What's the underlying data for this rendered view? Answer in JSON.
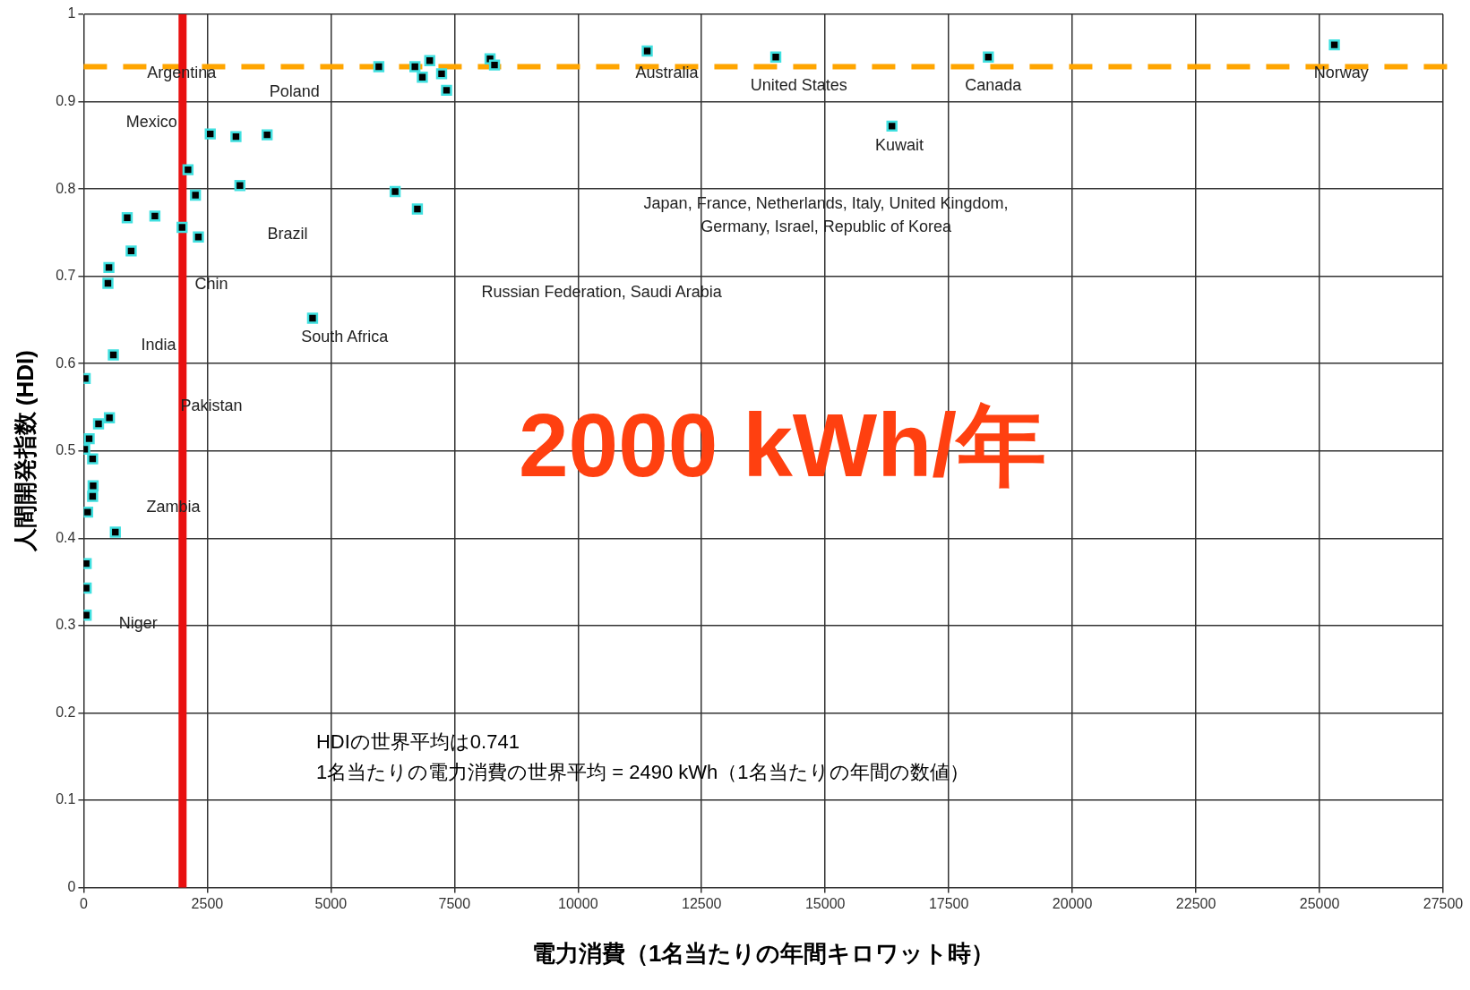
{
  "chart_data": {
    "type": "scatter",
    "xlabel": "電力消費（1名当たりの年間キロワット時）",
    "ylabel": "人間開発指数 (HDI)",
    "xlim": [
      0,
      27500
    ],
    "xticks": [
      0,
      2500,
      5000,
      7500,
      10000,
      12500,
      15000,
      17500,
      20000,
      22500,
      25000,
      27500
    ],
    "ylim": [
      0,
      1
    ],
    "yticks": [
      0,
      0.1,
      0.2,
      0.3,
      0.4,
      0.5,
      0.6,
      0.7,
      0.8,
      0.9,
      1
    ],
    "grid": true,
    "legend": false,
    "marker": "square",
    "series": [
      {
        "color": "#40e0e0",
        "x": [
          25300,
          18300,
          14000,
          11400,
          16350,
          5970,
          6700,
          7000,
          6850,
          7240,
          7340,
          8220,
          8310,
          6300,
          6750,
          4630,
          2560,
          3080,
          3710,
          3160,
          2110,
          2260,
          1990,
          2320,
          1440,
          880,
          960,
          510,
          490,
          600,
          30,
          520,
          300,
          110,
          20,
          180,
          190,
          180,
          80,
          640,
          50,
          50,
          50
        ],
        "values": [
          0.965,
          0.951,
          0.951,
          0.958,
          0.872,
          0.94,
          0.94,
          0.947,
          0.928,
          0.932,
          0.913,
          0.949,
          0.942,
          0.797,
          0.777,
          0.652,
          0.863,
          0.86,
          0.862,
          0.804,
          0.822,
          0.793,
          0.756,
          0.745,
          0.769,
          0.767,
          0.729,
          0.71,
          0.692,
          0.61,
          0.583,
          0.538,
          0.531,
          0.514,
          0.502,
          0.491,
          0.46,
          0.448,
          0.43,
          0.407,
          0.371,
          0.343,
          0.312
        ]
      }
    ],
    "ref_lines": [
      {
        "axis": "y",
        "value": 0.94,
        "color": "#ffa500",
        "line_style": "dashed"
      },
      {
        "axis": "x",
        "value": 2000,
        "color": "#e81010",
        "line_style": "solid"
      }
    ],
    "annotations": [
      "Argentina",
      "Poland",
      "Mexico",
      "Brazil",
      "Chin",
      "India",
      "Pakistan",
      "Zambia",
      "Niger",
      "South Africa",
      "Russian Federation, Saudi Arabia",
      "Japan, France, Netherlands, Italy, United Kingdom,\nGermany, Israel, Republic of Korea",
      "Australia",
      "United States",
      "Canada",
      "Kuwait",
      "Norway",
      "2000 kWh/年",
      "HDIの世界平均は0.741",
      "1名当たりの電力消費の世界平均 = 2490 kWh（1名当たりの年間の数値）"
    ]
  }
}
